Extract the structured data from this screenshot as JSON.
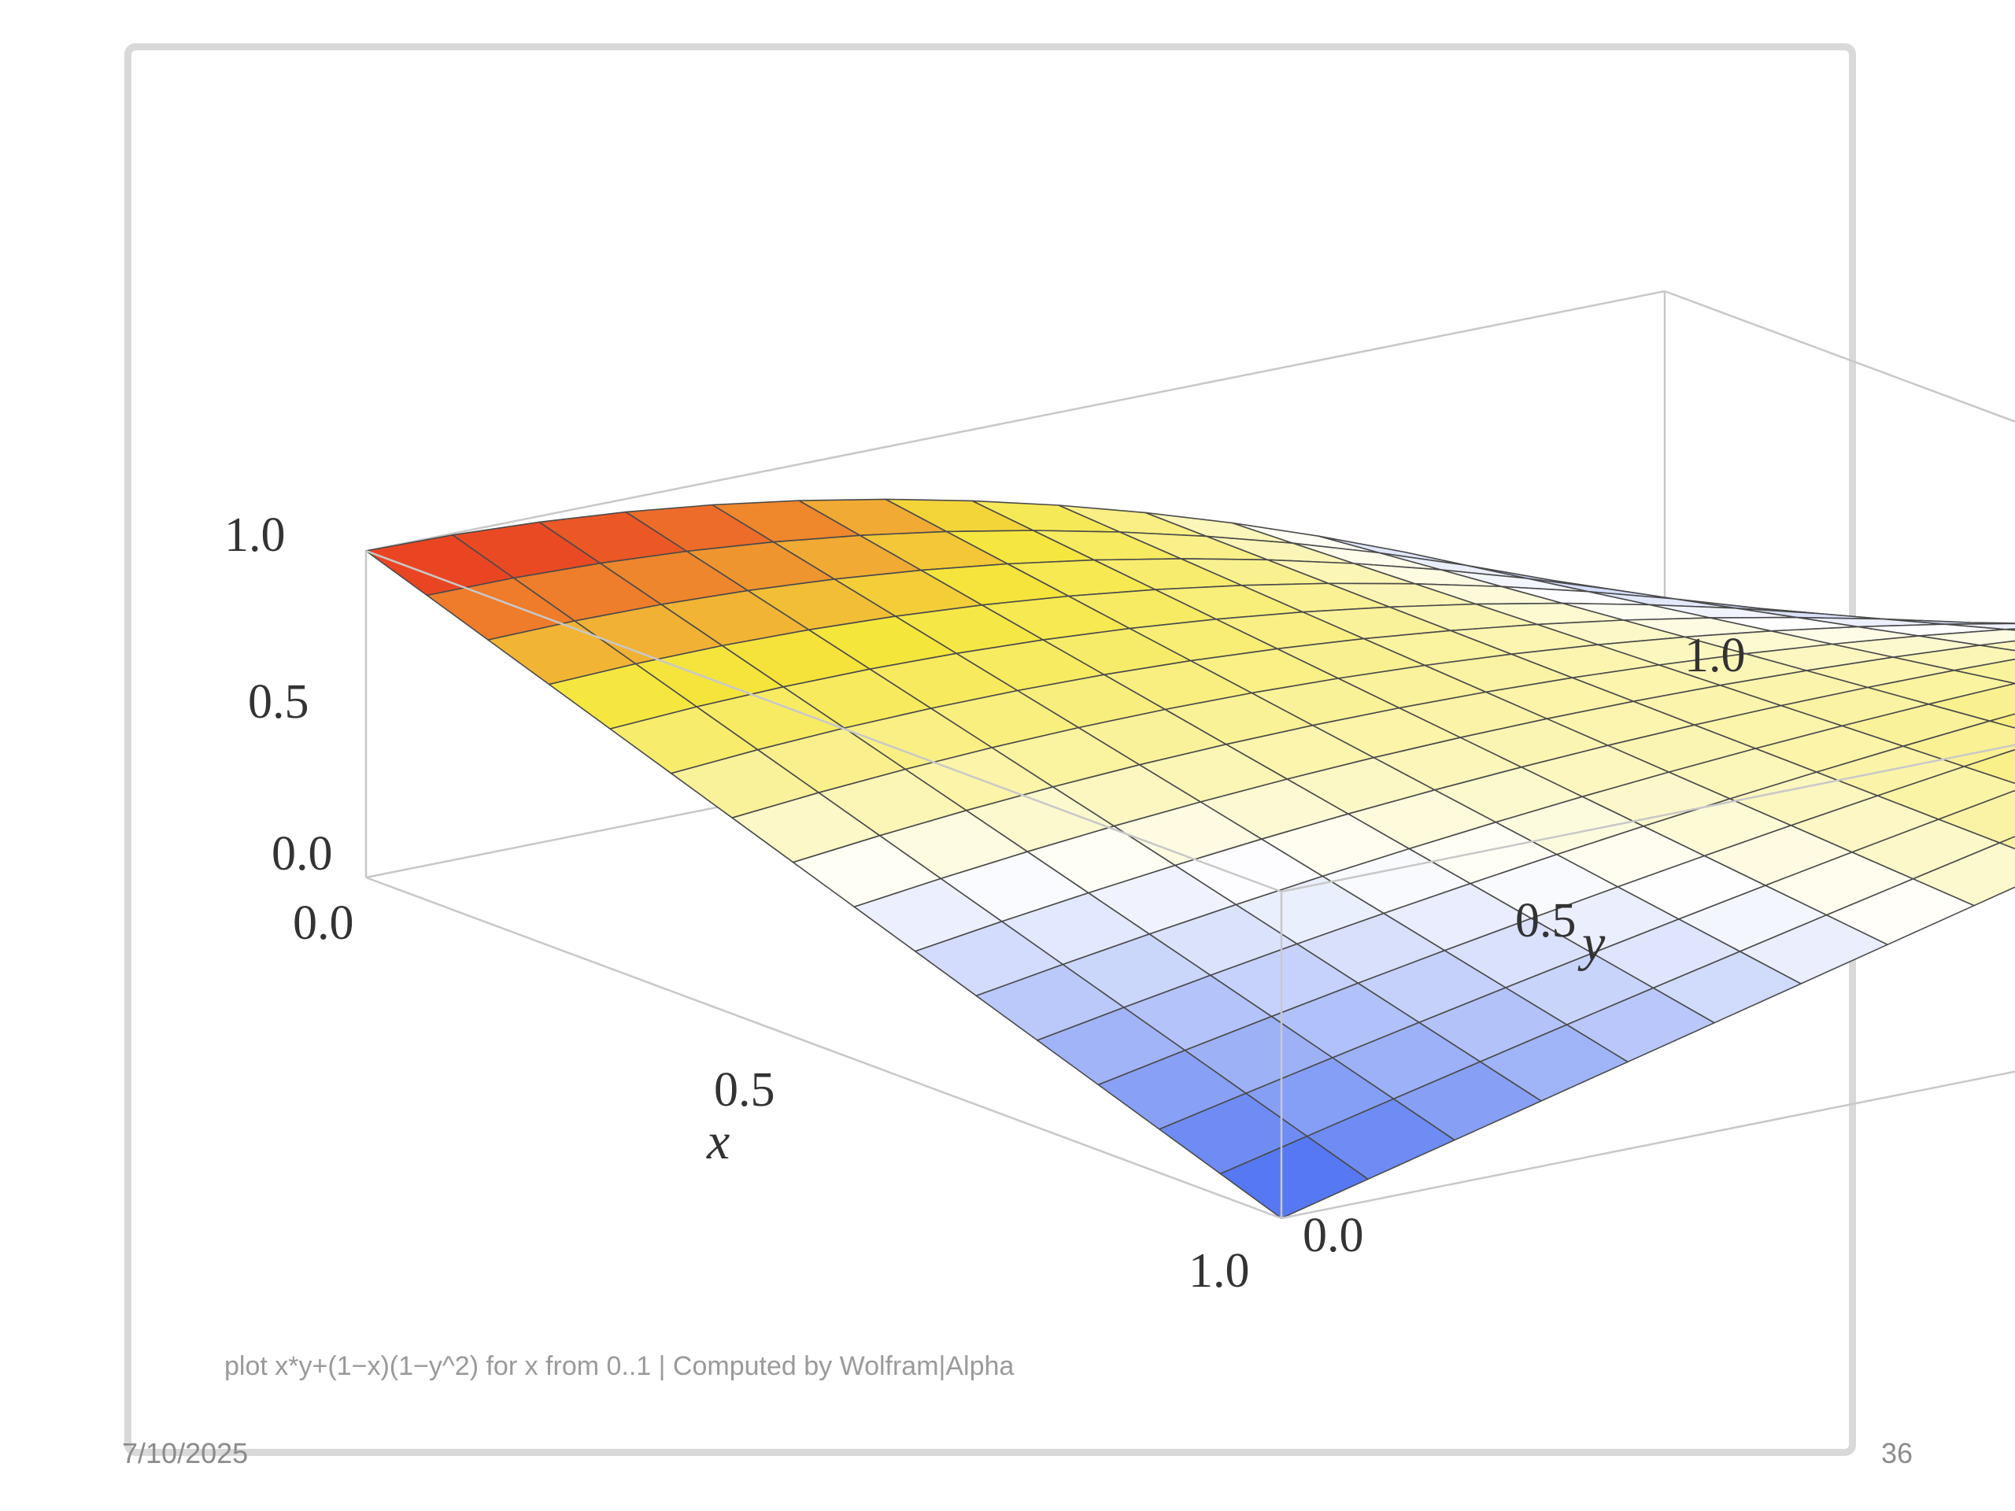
{
  "caption": "plot  x*y+(1−x)(1−y^2) for x from 0..1 | Computed by Wolfram|Alpha",
  "footer": {
    "date": "7/10/2025",
    "page": "36"
  },
  "chart_data": {
    "type": "surface3d",
    "function": "z = x*y + (1-x)*(1-y^2)",
    "x_range": [
      0,
      1
    ],
    "y_range": [
      0,
      1
    ],
    "z_range": [
      0,
      1
    ],
    "mesh_divisions": 15,
    "xlabel": "x",
    "ylabel": "y",
    "zlabel": "",
    "x_ticks": [
      "0.0",
      "0.5",
      "1.0"
    ],
    "y_ticks": [
      "0.0",
      "0.5",
      "1.0"
    ],
    "z_ticks": [
      "0.0",
      "0.5",
      "1.0"
    ],
    "colors": {
      "high": "#e8281e",
      "mid_high": "#f5e63c",
      "mid": "#ffffff",
      "low": "#3c64f0"
    }
  }
}
